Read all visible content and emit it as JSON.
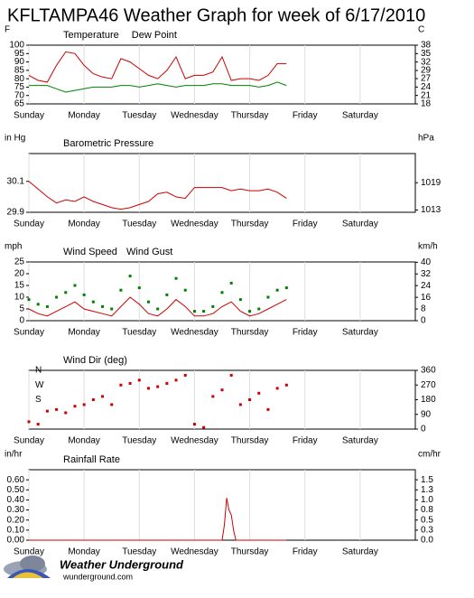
{
  "title": "KFLTAMPA46 Weather Graph for week of 6/17/2010",
  "footer": {
    "brand": "Weather Underground",
    "url": "wunderground.com"
  },
  "chart_data": [
    {
      "type": "line",
      "y_label": "F",
      "y2_label": "C",
      "x": [
        0,
        4,
        8,
        12,
        16,
        20,
        24,
        28,
        32,
        36,
        40,
        44,
        48,
        52,
        56,
        60,
        64,
        68,
        72,
        76,
        80,
        84,
        88,
        92,
        96,
        100,
        104,
        108,
        112
      ],
      "series": [
        {
          "name": "Temperature",
          "color": "#cc0000",
          "values": [
            82,
            79,
            78,
            88,
            96,
            95,
            88,
            83,
            81,
            80,
            92,
            90,
            86,
            82,
            80,
            85,
            93,
            80,
            82,
            82,
            84,
            93,
            79,
            80,
            80,
            79,
            82,
            89,
            89
          ]
        },
        {
          "name": "Dew Point",
          "color": "#008000",
          "values": [
            76,
            76,
            76,
            74,
            72,
            73,
            74,
            75,
            75,
            75,
            76,
            76,
            75,
            76,
            77,
            76,
            75,
            76,
            76,
            76,
            77,
            77,
            76,
            76,
            76,
            75,
            76,
            78,
            76
          ]
        }
      ],
      "xlim": [
        0,
        168
      ],
      "xticks": [
        {
          "value": 0,
          "label": "Sunday"
        },
        {
          "value": 24,
          "label": "Monday"
        },
        {
          "value": 48,
          "label": "Tuesday"
        },
        {
          "value": 72,
          "label": "Wednesday"
        },
        {
          "value": 96,
          "label": "Thursday"
        },
        {
          "value": 120,
          "label": "Friday"
        },
        {
          "value": 144,
          "label": "Saturday"
        }
      ],
      "ylim": [
        65,
        100
      ],
      "yticks": [
        65,
        70,
        75,
        80,
        85,
        90,
        95,
        100
      ],
      "y2lim": [
        18.3,
        37.8
      ],
      "y2ticks": [
        {
          "value": 18.3,
          "label": "18"
        },
        {
          "value": 21.1,
          "label": "21"
        },
        {
          "value": 23.9,
          "label": "24"
        },
        {
          "value": 26.7,
          "label": "27"
        },
        {
          "value": 29.4,
          "label": "29"
        },
        {
          "value": 32.2,
          "label": "32"
        },
        {
          "value": 35,
          "label": "35"
        },
        {
          "value": 37.8,
          "label": "38"
        }
      ],
      "grid": "x"
    },
    {
      "type": "line",
      "title": "Barometric Pressure",
      "y_label": "in Hg",
      "y2_label": "hPa",
      "x": [
        0,
        4,
        8,
        12,
        16,
        20,
        24,
        28,
        32,
        36,
        40,
        44,
        48,
        52,
        56,
        60,
        64,
        68,
        72,
        76,
        80,
        84,
        88,
        92,
        96,
        100,
        104,
        108,
        112
      ],
      "series": [
        {
          "color": "#cc0000",
          "values": [
            30.1,
            30.05,
            30.0,
            29.96,
            29.98,
            29.97,
            30.0,
            29.97,
            29.95,
            29.93,
            29.92,
            29.93,
            29.95,
            29.97,
            30.02,
            30.03,
            30.0,
            29.99,
            30.06,
            30.06,
            30.06,
            30.06,
            30.04,
            30.05,
            30.04,
            30.04,
            30.05,
            30.03,
            29.99
          ]
        }
      ],
      "xlim": [
        0,
        168
      ],
      "xticks": [
        {
          "value": 0,
          "label": "Sunday"
        },
        {
          "value": 24,
          "label": "Monday"
        },
        {
          "value": 48,
          "label": "Tuesday"
        },
        {
          "value": 72,
          "label": "Wednesday"
        },
        {
          "value": 96,
          "label": "Thursday"
        },
        {
          "value": 120,
          "label": "Friday"
        },
        {
          "value": 144,
          "label": "Saturday"
        }
      ],
      "ylim": [
        29.9,
        30.28
      ],
      "yticks": [
        29.9,
        30.1
      ],
      "y2lim": [
        1012.5,
        1025.4
      ],
      "y2ticks": [
        1013,
        1019
      ],
      "grid": "x"
    },
    {
      "type": "line",
      "y_label": "mph",
      "y2_label": "km/h",
      "x": [
        0,
        4,
        8,
        12,
        16,
        20,
        24,
        28,
        32,
        36,
        40,
        44,
        48,
        52,
        56,
        60,
        64,
        68,
        72,
        76,
        80,
        84,
        88,
        92,
        96,
        100,
        104,
        108,
        112
      ],
      "series": [
        {
          "name": "Wind Speed",
          "color": "#cc0000",
          "values": [
            5,
            3,
            2,
            4,
            6,
            8,
            5,
            4,
            3,
            2,
            6,
            10,
            7,
            3,
            2,
            5,
            9,
            6,
            2,
            2,
            3,
            6,
            8,
            4,
            2,
            3,
            5,
            7,
            9
          ]
        },
        {
          "name": "Wind Gust",
          "type": "scatter",
          "color": "#008000",
          "values": [
            9,
            7,
            6,
            10,
            12,
            15,
            11,
            8,
            6,
            5,
            13,
            19,
            14,
            8,
            5,
            11,
            18,
            13,
            4,
            4,
            6,
            12,
            16,
            9,
            4,
            5,
            10,
            13,
            14
          ]
        }
      ],
      "xlim": [
        0,
        168
      ],
      "xticks": [
        {
          "value": 0,
          "label": "Sunday"
        },
        {
          "value": 24,
          "label": "Monday"
        },
        {
          "value": 48,
          "label": "Tuesday"
        },
        {
          "value": 72,
          "label": "Wednesday"
        },
        {
          "value": 96,
          "label": "Thursday"
        },
        {
          "value": 120,
          "label": "Friday"
        },
        {
          "value": 144,
          "label": "Saturday"
        }
      ],
      "ylim": [
        0,
        25
      ],
      "yticks": [
        0,
        5,
        10,
        15,
        20,
        25
      ],
      "y2lim": [
        0,
        40.2
      ],
      "y2ticks": [
        0,
        8,
        16,
        24,
        32,
        40
      ],
      "grid": "x"
    },
    {
      "type": "scatter",
      "title": "Wind Dir (deg)",
      "x": [
        0,
        4,
        8,
        12,
        16,
        20,
        24,
        28,
        32,
        36,
        40,
        44,
        48,
        52,
        56,
        60,
        64,
        68,
        72,
        76,
        80,
        84,
        88,
        92,
        96,
        100,
        104,
        108,
        112
      ],
      "series": [
        {
          "color": "#cc0000",
          "values": [
            45,
            30,
            110,
            120,
            100,
            140,
            150,
            180,
            200,
            150,
            270,
            280,
            300,
            250,
            260,
            280,
            300,
            330,
            30,
            10,
            200,
            240,
            330,
            150,
            180,
            220,
            120,
            250,
            270
          ]
        }
      ],
      "compass": [
        {
          "value": 180,
          "label": "S"
        },
        {
          "value": 270,
          "label": "W"
        },
        {
          "value": 360,
          "label": "N"
        }
      ],
      "xlim": [
        0,
        168
      ],
      "xticks": [
        {
          "value": 0,
          "label": "Sunday"
        },
        {
          "value": 24,
          "label": "Monday"
        },
        {
          "value": 48,
          "label": "Tuesday"
        },
        {
          "value": 72,
          "label": "Wednesday"
        },
        {
          "value": 96,
          "label": "Thursday"
        },
        {
          "value": 120,
          "label": "Friday"
        },
        {
          "value": 144,
          "label": "Saturday"
        }
      ],
      "ylim": [
        0,
        360
      ],
      "y2lim": [
        0,
        360
      ],
      "y2ticks": [
        0,
        90,
        180,
        270,
        360
      ],
      "grid": "x"
    },
    {
      "type": "line",
      "title": "Rainfall Rate",
      "y_label": "in/hr",
      "y2_label": "cm/hr",
      "x": [
        0,
        84,
        85,
        86,
        87,
        88,
        89,
        90,
        112
      ],
      "series": [
        {
          "color": "#cc0000",
          "values": [
            0,
            0,
            0.15,
            0.42,
            0.3,
            0.25,
            0.1,
            0,
            0
          ]
        }
      ],
      "xlim": [
        0,
        168
      ],
      "xticks": [
        {
          "value": 0,
          "label": "Sunday"
        },
        {
          "value": 24,
          "label": "Monday"
        },
        {
          "value": 48,
          "label": "Tuesday"
        },
        {
          "value": 72,
          "label": "Wednesday"
        },
        {
          "value": 96,
          "label": "Thursday"
        },
        {
          "value": 120,
          "label": "Friday"
        },
        {
          "value": 144,
          "label": "Saturday"
        }
      ],
      "ylim": [
        0,
        0.7
      ],
      "yticks": [
        {
          "value": 0,
          "label": "0.00"
        },
        {
          "value": 0.1,
          "label": "0.10"
        },
        {
          "value": 0.2,
          "label": "0.20"
        },
        {
          "value": 0.3,
          "label": "0.30"
        },
        {
          "value": 0.4,
          "label": "0.40"
        },
        {
          "value": 0.5,
          "label": "0.50"
        },
        {
          "value": 0.6,
          "label": "0.60"
        }
      ],
      "y2lim": [
        0,
        1.778
      ],
      "y2ticks": [
        {
          "value": 0,
          "label": "0.0"
        },
        {
          "value": 0.254,
          "label": "0.3"
        },
        {
          "value": 0.508,
          "label": "0.5"
        },
        {
          "value": 0.762,
          "label": "0.8"
        },
        {
          "value": 1.016,
          "label": "1.0"
        },
        {
          "value": 1.27,
          "label": "1.3"
        },
        {
          "value": 1.524,
          "label": "1.5"
        }
      ],
      "grid": "x"
    }
  ]
}
